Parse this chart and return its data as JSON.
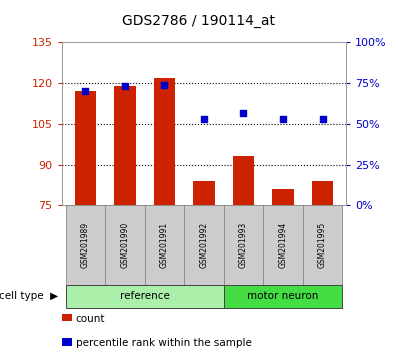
{
  "title": "GDS2786 / 190114_at",
  "samples": [
    "GSM201989",
    "GSM201990",
    "GSM201991",
    "GSM201992",
    "GSM201993",
    "GSM201994",
    "GSM201995"
  ],
  "counts": [
    117,
    119,
    122,
    84,
    93,
    81,
    84
  ],
  "percentiles": [
    70,
    73,
    74,
    53,
    57,
    53,
    53
  ],
  "ylim_left": [
    75,
    135
  ],
  "ylim_right": [
    0,
    100
  ],
  "yticks_left": [
    75,
    90,
    105,
    120,
    135
  ],
  "yticks_right": [
    0,
    25,
    50,
    75,
    100
  ],
  "ytick_labels_right": [
    "0%",
    "25%",
    "50%",
    "75%",
    "100%"
  ],
  "bar_color": "#cc2200",
  "scatter_color": "#0000cc",
  "bar_bottom": 75,
  "groups": [
    {
      "label": "reference",
      "indices": [
        0,
        1,
        2,
        3
      ],
      "color": "#aaf0aa"
    },
    {
      "label": "motor neuron",
      "indices": [
        4,
        5,
        6
      ],
      "color": "#44dd44"
    }
  ],
  "cell_type_label": "cell type",
  "legend_count_label": "count",
  "legend_percentile_label": "percentile rank within the sample",
  "tick_color_left": "#cc2200",
  "tick_color_right": "#0000cc",
  "background_color": "#ffffff",
  "gray_box_color": "#cccccc",
  "gray_box_edge": "#888888"
}
